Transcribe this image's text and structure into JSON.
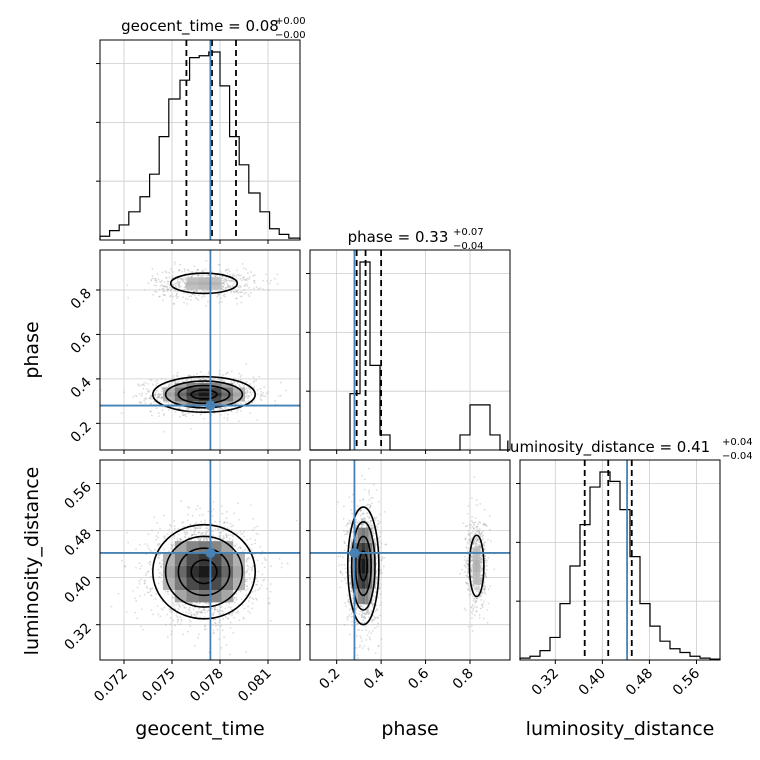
{
  "colors": {
    "truth": "#4682b4",
    "line": "#000000",
    "grid": "#cccccc",
    "points": "#9a9a9a"
  },
  "panel_titles": [
    {
      "id": "geocent_time",
      "prefix": "geocent_time = 0.08",
      "sup": "+0.00",
      "sub": "−0.00"
    },
    {
      "id": "phase",
      "prefix": "phase = 0.33",
      "sup": "+0.07",
      "sub": "−0.04"
    },
    {
      "id": "luminosity_distance",
      "prefix": "luminosity_distance = 0.41",
      "sup": "+0.04",
      "sub": "−0.04"
    }
  ],
  "axis_labels": {
    "x": [
      "geocent_time",
      "phase",
      "luminosity_distance"
    ],
    "y": [
      "phase",
      "luminosity_distance"
    ]
  },
  "chart_data": {
    "type": "corner",
    "parameters": [
      "geocent_time",
      "phase",
      "luminosity_distance"
    ],
    "ranges": {
      "geocent_time": [
        0.0705,
        0.083
      ],
      "phase": [
        0.08,
        0.98
      ],
      "luminosity_distance": [
        0.26,
        0.6
      ]
    },
    "ticks": {
      "geocent_time": {
        "values": [
          0.072,
          0.075,
          0.078,
          0.081
        ],
        "labels": [
          "0.072",
          "0.075",
          "0.078",
          "0.081"
        ]
      },
      "phase": {
        "values": [
          0.2,
          0.4,
          0.6,
          0.8
        ],
        "labels": [
          "0.2",
          "0.4",
          "0.6",
          "0.8"
        ]
      },
      "luminosity_distance": {
        "values": [
          0.32,
          0.4,
          0.48,
          0.56
        ],
        "labels": [
          "0.32",
          "0.40",
          "0.48",
          "0.56"
        ]
      }
    },
    "truths": {
      "geocent_time": 0.0774,
      "phase": 0.28,
      "luminosity_distance": 0.442
    },
    "quantiles": {
      "geocent_time": [
        0.0759,
        0.0775,
        0.079
      ],
      "phase": [
        0.29,
        0.33,
        0.4
      ],
      "luminosity_distance": [
        0.37,
        0.41,
        0.45
      ]
    },
    "grid": true,
    "histograms": {
      "geocent_time": {
        "edges": [
          0.0705,
          0.0711,
          0.0717,
          0.0723,
          0.073,
          0.0736,
          0.0742,
          0.0748,
          0.0755,
          0.0761,
          0.0767,
          0.0773,
          0.078,
          0.0786,
          0.0792,
          0.0798,
          0.0805,
          0.0811,
          0.0817,
          0.0823,
          0.083
        ],
        "counts": [
          0.02,
          0.05,
          0.08,
          0.15,
          0.23,
          0.35,
          0.55,
          0.75,
          0.85,
          0.97,
          0.98,
          1.0,
          0.82,
          0.55,
          0.4,
          0.25,
          0.15,
          0.06,
          0.03,
          0.01
        ]
      },
      "phase": {
        "edges": [
          0.08,
          0.125,
          0.17,
          0.215,
          0.26,
          0.305,
          0.35,
          0.395,
          0.44,
          0.485,
          0.53,
          0.575,
          0.62,
          0.665,
          0.71,
          0.755,
          0.8,
          0.845,
          0.89,
          0.935,
          0.98
        ],
        "counts": [
          0,
          0,
          0,
          0,
          0.3,
          1.0,
          0.45,
          0.08,
          0,
          0,
          0,
          0,
          0,
          0,
          0,
          0.08,
          0.24,
          0.24,
          0.08,
          0
        ]
      },
      "luminosity_distance": {
        "edges": [
          0.26,
          0.277,
          0.294,
          0.311,
          0.328,
          0.345,
          0.362,
          0.379,
          0.396,
          0.413,
          0.43,
          0.447,
          0.464,
          0.481,
          0.498,
          0.515,
          0.532,
          0.549,
          0.566,
          0.583,
          0.6
        ],
        "counts": [
          0.01,
          0.02,
          0.05,
          0.12,
          0.3,
          0.5,
          0.72,
          0.92,
          1.0,
          0.95,
          0.8,
          0.55,
          0.3,
          0.18,
          0.1,
          0.06,
          0.04,
          0.02,
          0.01,
          0.005
        ]
      }
    },
    "scatter_clusters": {
      "geocent_time|phase": [
        {
          "cx": 0.077,
          "sx": 0.0016,
          "cy": 0.33,
          "sy": 0.04,
          "n": 1500
        },
        {
          "cx": 0.077,
          "sx": 0.0016,
          "cy": 0.83,
          "sy": 0.035,
          "n": 600
        }
      ],
      "geocent_time|luminosity_distance": [
        {
          "cx": 0.077,
          "sx": 0.0016,
          "cy": 0.41,
          "sy": 0.04,
          "n": 2100
        }
      ],
      "phase|luminosity_distance": [
        {
          "cx": 0.32,
          "sx": 0.035,
          "cy": 0.42,
          "sy": 0.05,
          "n": 1500
        },
        {
          "cx": 0.83,
          "sx": 0.025,
          "cy": 0.42,
          "sy": 0.04,
          "n": 600
        }
      ]
    },
    "contour_levels": [
      0.393,
      0.865,
      0.989
    ]
  }
}
